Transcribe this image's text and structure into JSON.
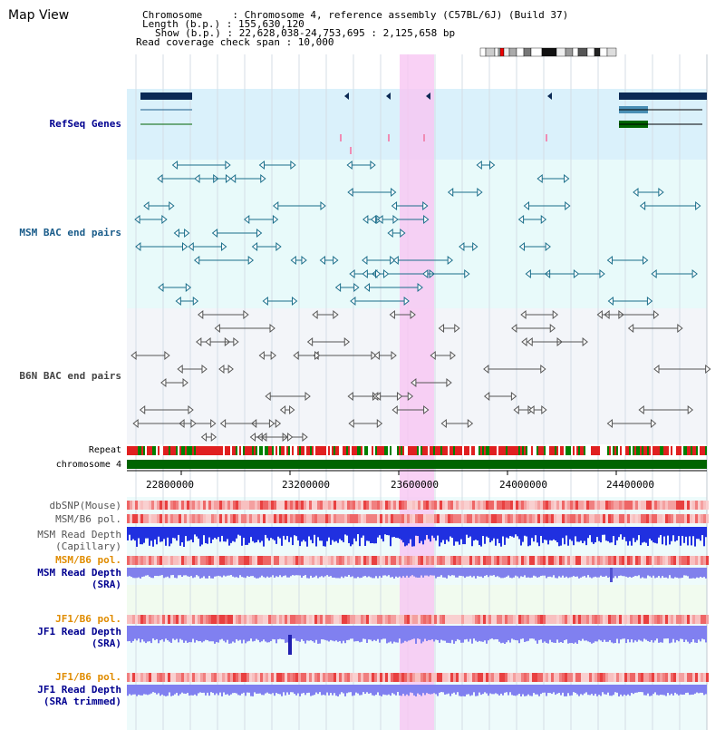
{
  "page_title": "Map View",
  "info": {
    "chromosome_line": "Chromosome     : Chromosome 4, reference assembly (C57BL/6J) (Build 37)",
    "length_line": "Length (b.p.) : 155,630,120",
    "show_line": "Show (b.p.) : 22,628,038-24,753,695 : 2,125,658 bp",
    "span_line": "Read coverage check span : 10,000"
  },
  "tracks": {
    "refseq": "RefSeq Genes",
    "msm_bac": "MSM BAC end pairs",
    "b6n_bac": "B6N BAC end pairs",
    "repeat": "Repeat",
    "chromosome": "chromosome 4",
    "dbsnp": "dbSNP(Mouse)",
    "msm_b6_pol_1": "MSM/B6 pol.",
    "msm_depth_cap_1": "MSM Read Depth",
    "msm_depth_cap_2": "(Capillary)",
    "msm_b6_pol_2": "MSM/B6 pol.",
    "msm_depth_sra_1": "MSM Read Depth",
    "msm_depth_sra_2": "(SRA)",
    "jf1_b6_pol_1": "JF1/B6 pol.",
    "jf1_depth_sra_1": "JF1 Read Depth",
    "jf1_depth_sra_2": "(SRA)",
    "jf1_b6_pol_2": "JF1/B6 pol.",
    "jf1_depth_trim_1": "JF1 Read Depth",
    "jf1_depth_trim_2": "(SRA trimmed)"
  },
  "axis_ticks": [
    "22800000",
    "23200000",
    "23600000",
    "24000000",
    "24400000"
  ],
  "colors": {
    "label_blue": "#000090",
    "label_orange": "#e08c00",
    "highlight": "#f5c8f0",
    "chromosome_bar": "#006400",
    "bac_teal": "#1a6e8a"
  }
}
